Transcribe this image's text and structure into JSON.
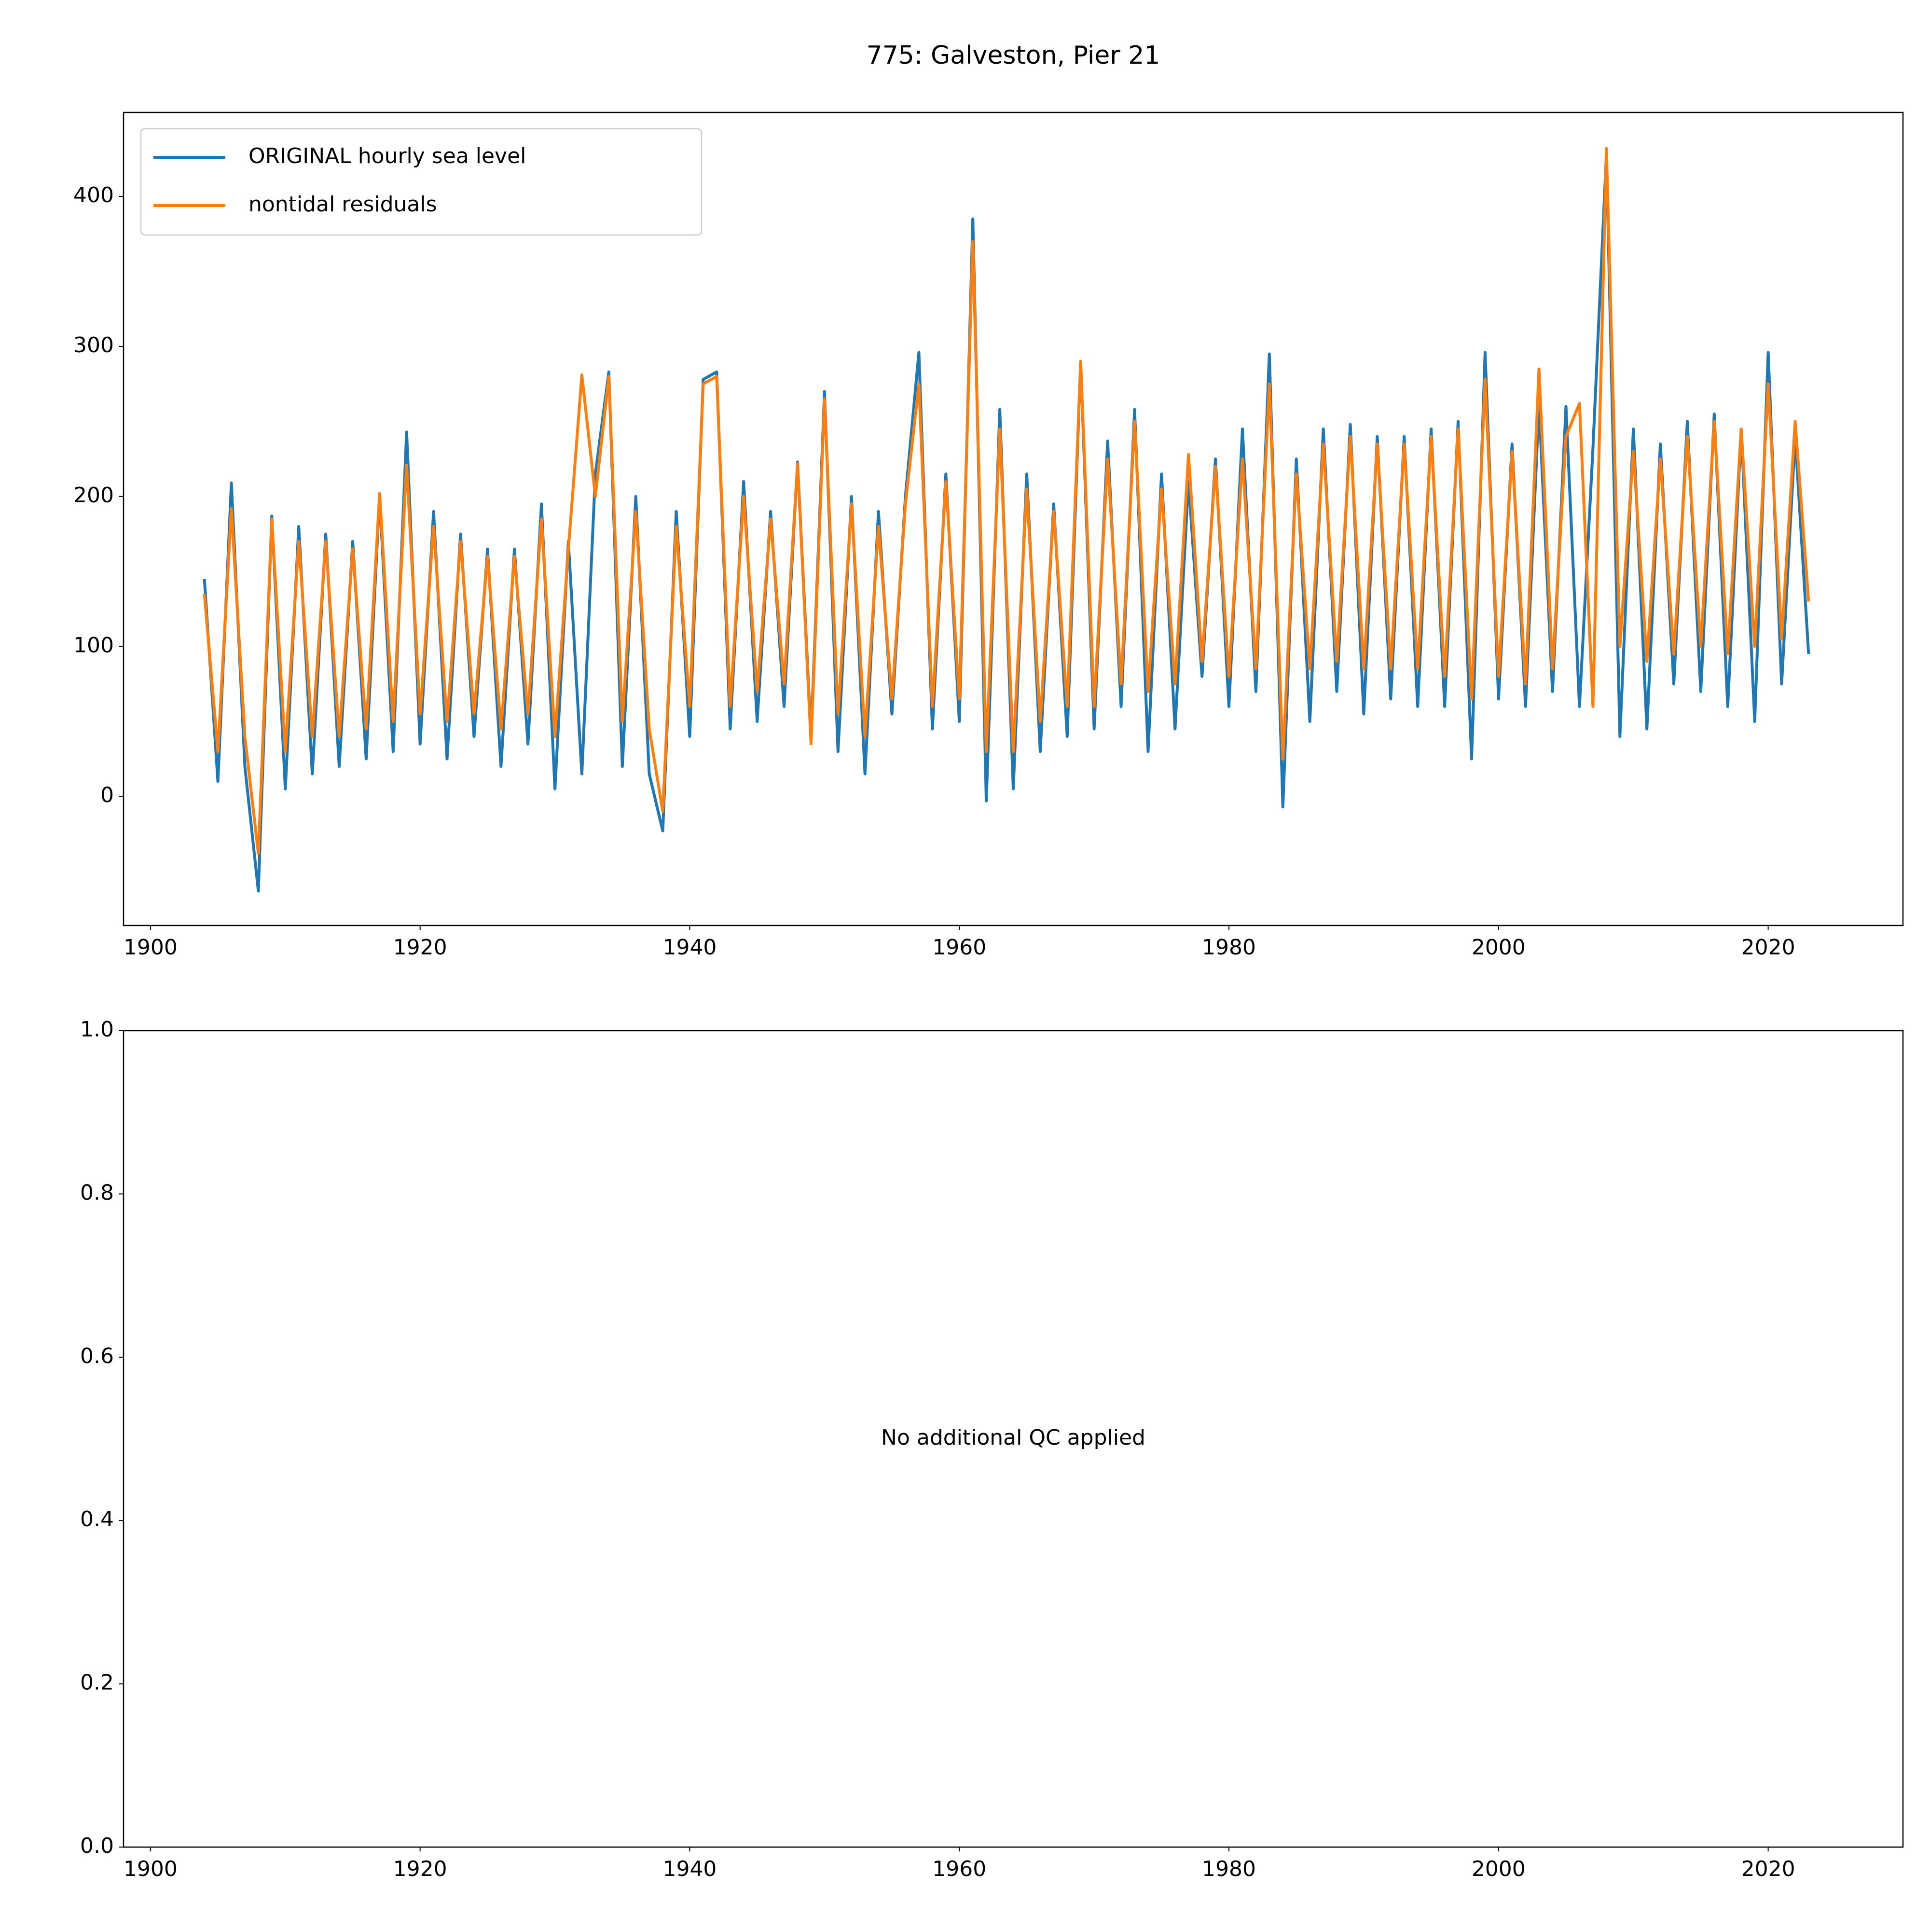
{
  "chart_data": [
    {
      "type": "line",
      "title": "775: Galveston, Pier 21",
      "x": [
        1904,
        1905,
        1906,
        1907,
        1908,
        1909,
        1910,
        1911,
        1912,
        1913,
        1914,
        1915,
        1916,
        1917,
        1918,
        1919,
        1920,
        1921,
        1922,
        1923,
        1924,
        1925,
        1926,
        1927,
        1928,
        1929,
        1930,
        1931,
        1932,
        1933,
        1934,
        1935,
        1936,
        1937,
        1938,
        1939,
        1940,
        1941,
        1942,
        1943,
        1944,
        1945,
        1946,
        1947,
        1948,
        1949,
        1950,
        1951,
        1952,
        1953,
        1954,
        1955,
        1956,
        1957,
        1958,
        1959,
        1960,
        1961,
        1962,
        1963,
        1964,
        1965,
        1966,
        1967,
        1968,
        1969,
        1970,
        1971,
        1972,
        1973,
        1974,
        1975,
        1976,
        1977,
        1978,
        1979,
        1980,
        1981,
        1982,
        1983,
        1984,
        1985,
        1986,
        1987,
        1988,
        1989,
        1990,
        1991,
        1992,
        1993,
        1994,
        1995,
        1996,
        1997,
        1998,
        1999,
        2000,
        2001,
        2002,
        2003,
        2004,
        2005,
        2006,
        2007,
        2008,
        2009,
        2010,
        2011,
        2012,
        2013,
        2014,
        2015,
        2016,
        2017,
        2018,
        2019,
        2020,
        2021,
        2022,
        2023
      ],
      "series": [
        {
          "name": "ORIGINAL hourly sea level",
          "color": "#1f77b4",
          "values": [
            145,
            10,
            209,
            20,
            -63,
            187,
            5,
            180,
            15,
            175,
            20,
            170,
            25,
            200,
            30,
            243,
            35,
            190,
            25,
            175,
            40,
            165,
            20,
            165,
            35,
            195,
            5,
            170,
            15,
            215,
            283,
            20,
            200,
            15,
            -23,
            190,
            40,
            278,
            283,
            45,
            210,
            50,
            190,
            60,
            223,
            40,
            270,
            30,
            200,
            15,
            190,
            55,
            200,
            296,
            45,
            215,
            50,
            385,
            -3,
            258,
            5,
            215,
            30,
            195,
            40,
            290,
            45,
            237,
            60,
            258,
            30,
            215,
            45,
            210,
            80,
            225,
            60,
            245,
            70,
            295,
            -7,
            225,
            50,
            245,
            70,
            248,
            55,
            240,
            65,
            240,
            60,
            245,
            60,
            250,
            25,
            296,
            65,
            235,
            60,
            262,
            70,
            260,
            60,
            232,
            428,
            40,
            245,
            45,
            235,
            75,
            250,
            70,
            255,
            60,
            245,
            50,
            296,
            75,
            240,
            95
          ]
        },
        {
          "name": "nontidal residuals",
          "color": "#ff7f0e",
          "values": [
            135,
            30,
            192,
            40,
            -38,
            185,
            30,
            170,
            40,
            170,
            40,
            165,
            45,
            202,
            50,
            221,
            55,
            180,
            50,
            170,
            55,
            160,
            45,
            160,
            55,
            185,
            40,
            165,
            281,
            200,
            280,
            50,
            190,
            45,
            -10,
            180,
            60,
            275,
            280,
            60,
            200,
            70,
            185,
            75,
            222,
            35,
            265,
            55,
            195,
            40,
            180,
            65,
            195,
            275,
            60,
            210,
            65,
            370,
            30,
            245,
            30,
            205,
            50,
            190,
            60,
            290,
            60,
            225,
            75,
            250,
            70,
            205,
            75,
            228,
            90,
            220,
            80,
            225,
            85,
            275,
            25,
            215,
            85,
            235,
            90,
            240,
            85,
            235,
            85,
            235,
            85,
            240,
            80,
            245,
            65,
            278,
            80,
            230,
            75,
            285,
            85,
            240,
            262,
            60,
            432,
            100,
            230,
            90,
            225,
            95,
            240,
            100,
            250,
            95,
            245,
            100,
            275,
            105,
            250,
            130
          ]
        }
      ],
      "xlim": [
        1898,
        2030
      ],
      "xticks": [
        1900,
        1920,
        1940,
        1960,
        1980,
        2000,
        2020
      ],
      "ylim": [
        -86,
        456
      ],
      "yticks": [
        0,
        100,
        200,
        300,
        400
      ],
      "legend": "upper left"
    },
    {
      "type": "line",
      "annotation": "No additional QC applied",
      "xlim": [
        1898,
        2030
      ],
      "xticks": [
        1900,
        1920,
        1940,
        1960,
        1980,
        2000,
        2020
      ],
      "ylim": [
        0,
        1
      ],
      "yticks": [
        {
          "value": 0,
          "label": "0.0"
        },
        {
          "value": 0.2,
          "label": "0.2"
        },
        {
          "value": 0.4,
          "label": "0.4"
        },
        {
          "value": 0.6,
          "label": "0.6"
        },
        {
          "value": 0.8,
          "label": "0.8"
        },
        {
          "value": 1,
          "label": "1.0"
        }
      ]
    }
  ]
}
